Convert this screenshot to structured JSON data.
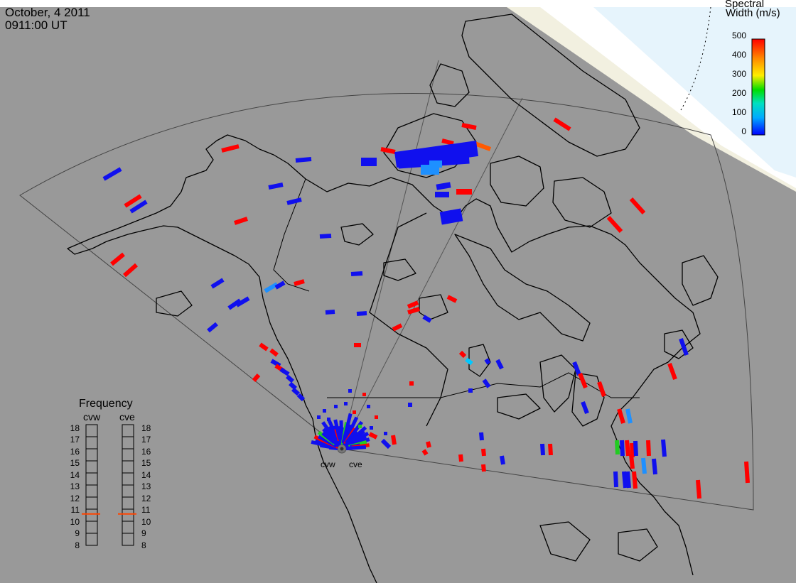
{
  "header": {
    "date": "October, 4 2011",
    "time": "0911:00 UT"
  },
  "colorbar": {
    "title_line1": "Spectral",
    "title_line2": "Width (m/s)",
    "ticks": [
      "500",
      "400",
      "300",
      "200",
      "100",
      "0"
    ],
    "vmin": 0,
    "vmax": 500,
    "colors": [
      "#0000ff",
      "#00aaff",
      "#00e0c0",
      "#00dd00",
      "#ffee00",
      "#ff8800",
      "#ff0000"
    ]
  },
  "frequency_panel": {
    "title": "Frequency",
    "radars": [
      {
        "name": "cvw",
        "frequency_mhz": 10.6
      },
      {
        "name": "cve",
        "frequency_mhz": 10.6
      }
    ],
    "scale": [
      "18",
      "17",
      "16",
      "15",
      "14",
      "13",
      "12",
      "11",
      "10",
      "9",
      "8"
    ],
    "indicator_color": "#ff4400"
  },
  "radar_labels": [
    "cvw",
    "cve"
  ],
  "colors": {
    "background": "#999999",
    "coastline": "#000000",
    "daylight": "#ffffff",
    "twilight": "#f2f0e0"
  }
}
